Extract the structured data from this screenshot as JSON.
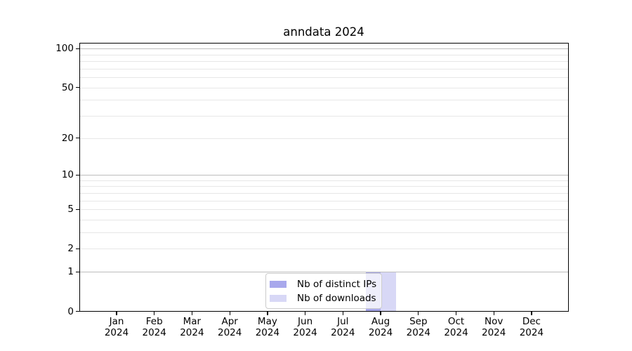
{
  "chart_data": {
    "type": "bar",
    "title": "anndata 2024",
    "x": {
      "months": [
        "Jan",
        "Feb",
        "Mar",
        "Apr",
        "May",
        "Jun",
        "Jul",
        "Aug",
        "Sep",
        "Oct",
        "Nov",
        "Dec"
      ],
      "year": "2024"
    },
    "categories": [
      "Jan 2024",
      "Feb 2024",
      "Mar 2024",
      "Apr 2024",
      "May 2024",
      "Jun 2024",
      "Jul 2024",
      "Aug 2024",
      "Sep 2024",
      "Oct 2024",
      "Nov 2024",
      "Dec 2024"
    ],
    "series": [
      {
        "name": "Nb of distinct IPs",
        "color": "#a8a8ec",
        "values": [
          0,
          0,
          0,
          0,
          0,
          0,
          0,
          1,
          0,
          0,
          0,
          0
        ]
      },
      {
        "name": "Nb of downloads",
        "color": "#d8d8f6",
        "values": [
          0,
          0,
          0,
          0,
          0,
          0,
          0,
          1,
          0,
          0,
          0,
          0
        ]
      }
    ],
    "y_axis": {
      "scale": "log10(1+x)",
      "ticks": [
        0,
        1,
        2,
        5,
        10,
        20,
        50,
        100
      ],
      "major_gridlines": [
        1,
        10,
        100
      ],
      "minor_gridlines": [
        2,
        3,
        4,
        6,
        7,
        8,
        9,
        5,
        20,
        30,
        40,
        50,
        60,
        70,
        80,
        90
      ],
      "lim": [
        0,
        110
      ]
    },
    "xlabel": "",
    "ylabel": "",
    "grid": "horizontal",
    "legend": {
      "position": "lower center inside",
      "entries": [
        "Nb of distinct IPs",
        "Nb of downloads"
      ]
    }
  }
}
